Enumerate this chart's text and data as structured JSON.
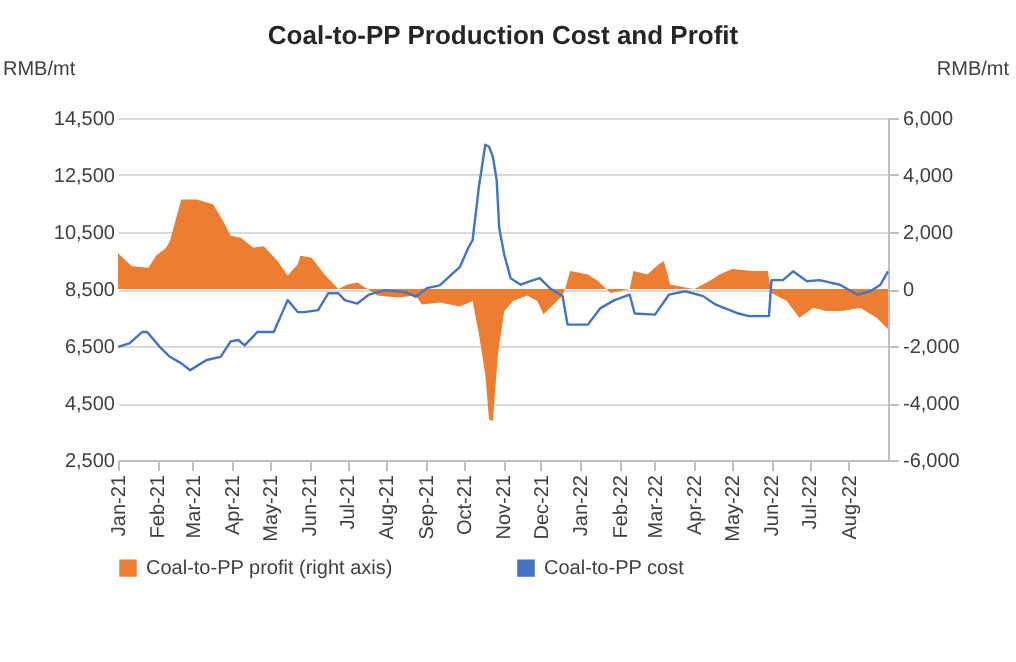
{
  "chart_data": {
    "type": "line",
    "title": "Coal-to-PP Production Cost and Profit",
    "ylabel": "RMB/mt",
    "y2label": "RMB/mt",
    "xlim": [
      "2021-01-01",
      "2022-09-01"
    ],
    "xticks": [
      {
        "value": "2021-01-01",
        "label": "Jan-21"
      },
      {
        "value": "2021-02-01",
        "label": "Feb-21"
      },
      {
        "value": "2021-03-01",
        "label": "Mar-21"
      },
      {
        "value": "2021-04-01",
        "label": "Apr-21"
      },
      {
        "value": "2021-05-01",
        "label": "May-21"
      },
      {
        "value": "2021-06-01",
        "label": "Jun-21"
      },
      {
        "value": "2021-07-01",
        "label": "Jul-21"
      },
      {
        "value": "2021-08-01",
        "label": "Aug-21"
      },
      {
        "value": "2021-09-01",
        "label": "Sep-21"
      },
      {
        "value": "2021-10-01",
        "label": "Oct-21"
      },
      {
        "value": "2021-11-01",
        "label": "Nov-21"
      },
      {
        "value": "2021-12-01",
        "label": "Dec-21"
      },
      {
        "value": "2022-01-01",
        "label": "Jan-22"
      },
      {
        "value": "2022-02-01",
        "label": "Feb-22"
      },
      {
        "value": "2022-03-01",
        "label": "Mar-22"
      },
      {
        "value": "2022-04-01",
        "label": "Apr-22"
      },
      {
        "value": "2022-05-01",
        "label": "May-22"
      },
      {
        "value": "2022-06-01",
        "label": "Jun-22"
      },
      {
        "value": "2022-07-01",
        "label": "Jul-22"
      },
      {
        "value": "2022-08-01",
        "label": "Aug-22"
      }
    ],
    "ylim": [
      2500,
      14500
    ],
    "yticks": [
      {
        "value": 2500,
        "label": "2,500"
      },
      {
        "value": 4500,
        "label": "4,500"
      },
      {
        "value": 6500,
        "label": "6,500"
      },
      {
        "value": 8500,
        "label": "8,500"
      },
      {
        "value": 10500,
        "label": "10,500"
      },
      {
        "value": 12500,
        "label": "12,500"
      },
      {
        "value": 14500,
        "label": "14,500"
      }
    ],
    "y2lim": [
      -6000,
      6000
    ],
    "y2ticks": [
      {
        "value": -6000,
        "label": "-6,000"
      },
      {
        "value": -4000,
        "label": "-4,000"
      },
      {
        "value": -2000,
        "label": "-2,000"
      },
      0,
      {
        "value": 2000,
        "label": "2,000"
      },
      {
        "value": 4000,
        "label": "4,000"
      },
      {
        "value": 6000,
        "label": "6,000"
      }
    ],
    "grid": "y",
    "legend": "bottom",
    "series": [
      {
        "name": "Coal-to-PP profit (right axis)",
        "type": "area",
        "axis": "y2",
        "color": "#ed7d31",
        "x": [
          "2021-01-01",
          "2021-01-03",
          "2021-01-12",
          "2021-01-25",
          "2021-01-31",
          "2021-02-08",
          "2021-02-11",
          "2021-02-16",
          "2021-02-20",
          "2021-03-04",
          "2021-03-17",
          "2021-03-25",
          "2021-03-31",
          "2021-04-08",
          "2021-04-18",
          "2021-04-26",
          "2021-05-07",
          "2021-05-15",
          "2021-05-23",
          "2021-05-25",
          "2021-06-03",
          "2021-06-13",
          "2021-06-24",
          "2021-07-01",
          "2021-07-09",
          "2021-07-17",
          "2021-07-25",
          "2021-08-10",
          "2021-08-24",
          "2021-08-29",
          "2021-09-12",
          "2021-09-28",
          "2021-10-08",
          "2021-10-13",
          "2021-10-18",
          "2021-10-21",
          "2021-10-24",
          "2021-10-28",
          "2021-11-02",
          "2021-11-09",
          "2021-11-20",
          "2021-11-28",
          "2021-12-03",
          "2021-12-11",
          "2021-12-18",
          "2021-12-20",
          "2021-12-24",
          "2022-01-07",
          "2022-01-15",
          "2022-01-25",
          "2022-02-09",
          "2022-02-12",
          "2022-02-23",
          "2022-03-04",
          "2022-03-08",
          "2022-03-13",
          "2022-03-25",
          "2022-04-01",
          "2022-04-13",
          "2022-04-21",
          "2022-05-01",
          "2022-05-17",
          "2022-05-29",
          "2022-06-01",
          "2022-06-13",
          "2022-06-23",
          "2022-07-04",
          "2022-07-14",
          "2022-07-27",
          "2022-08-10",
          "2022-08-23",
          "2022-09-01"
        ],
        "values": [
          1260,
          1170,
          800,
          750,
          1170,
          1450,
          1680,
          2500,
          3140,
          3140,
          2970,
          2390,
          1870,
          1800,
          1450,
          1500,
          980,
          470,
          870,
          1170,
          1100,
          510,
          0,
          160,
          230,
          0,
          -230,
          -300,
          -230,
          -540,
          -470,
          -610,
          -420,
          -1590,
          -3000,
          -4590,
          -4630,
          -2290,
          -770,
          -420,
          -230,
          -420,
          -890,
          -540,
          -230,
          0,
          630,
          510,
          280,
          -140,
          0,
          630,
          510,
          870,
          980,
          160,
          50,
          0,
          280,
          510,
          700,
          630,
          630,
          -140,
          -420,
          -1010,
          -660,
          -770,
          -770,
          -660,
          -1010,
          -1400
        ]
      },
      {
        "name": "Coal-to-PP cost",
        "color": "#4472c4",
        "x": [
          "2021-01-01",
          "2021-01-10",
          "2021-01-20",
          "2021-01-24",
          "2021-02-03",
          "2021-02-11",
          "2021-02-20",
          "2021-02-27",
          "2021-03-05",
          "2021-03-12",
          "2021-03-23",
          "2021-03-31",
          "2021-04-06",
          "2021-04-11",
          "2021-04-21",
          "2021-05-04",
          "2021-05-15",
          "2021-05-23",
          "2021-05-28",
          "2021-06-08",
          "2021-06-16",
          "2021-06-24",
          "2021-06-29",
          "2021-07-09",
          "2021-07-18",
          "2021-07-31",
          "2021-08-16",
          "2021-08-24",
          "2021-09-02",
          "2021-09-12",
          "2021-09-28",
          "2021-10-05",
          "2021-10-08",
          "2021-10-13",
          "2021-10-18",
          "2021-10-21",
          "2021-10-24",
          "2021-10-27",
          "2021-10-29",
          "2021-11-02",
          "2021-11-07",
          "2021-11-15",
          "2021-11-22",
          "2021-11-30",
          "2021-12-08",
          "2021-12-18",
          "2021-12-22",
          "2022-01-07",
          "2022-01-17",
          "2022-01-28",
          "2022-02-09",
          "2022-02-13",
          "2022-03-01",
          "2022-03-12",
          "2022-03-25",
          "2022-04-08",
          "2022-04-18",
          "2022-05-06",
          "2022-05-14",
          "2022-05-30",
          "2022-06-01",
          "2022-06-10",
          "2022-06-18",
          "2022-06-29",
          "2022-07-09",
          "2022-07-25",
          "2022-08-08",
          "2022-08-18",
          "2022-08-26",
          "2022-09-01"
        ],
        "values": [
          6470,
          6590,
          6990,
          6990,
          6470,
          6120,
          5890,
          5650,
          5820,
          6010,
          6120,
          6660,
          6710,
          6520,
          6990,
          6990,
          8110,
          7690,
          7690,
          7760,
          8350,
          8350,
          8110,
          7990,
          8300,
          8460,
          8390,
          8230,
          8530,
          8630,
          9280,
          9980,
          10220,
          12090,
          13560,
          13490,
          13140,
          12320,
          10640,
          9700,
          8880,
          8650,
          8770,
          8880,
          8530,
          8250,
          7250,
          7250,
          7830,
          8110,
          8300,
          7640,
          7600,
          8300,
          8420,
          8250,
          7950,
          7640,
          7550,
          7550,
          8810,
          8810,
          9120,
          8770,
          8810,
          8650,
          8300,
          8420,
          8650,
          9120
        ]
      }
    ]
  }
}
